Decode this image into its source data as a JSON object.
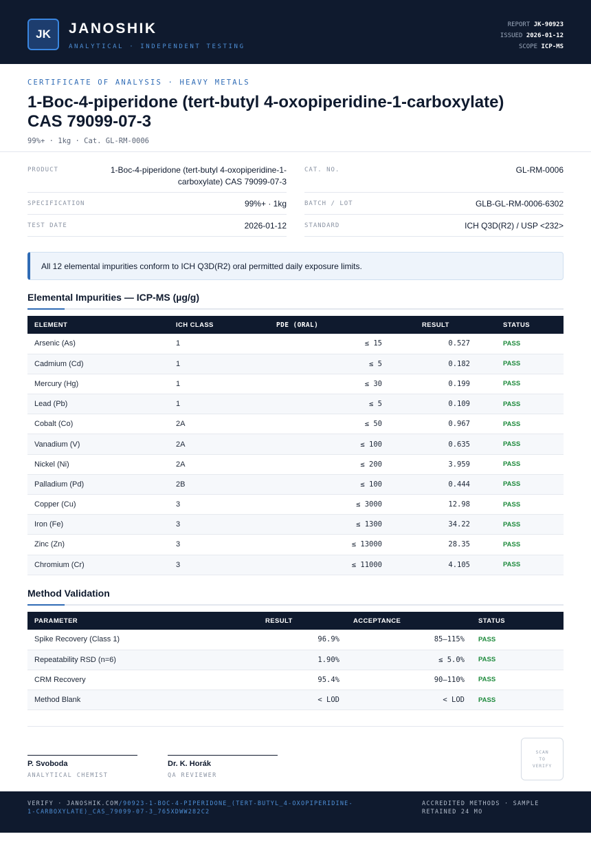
{
  "header": {
    "logo_text": "JK",
    "brand_name": "JANOSHIK",
    "brand_tagline": "ANALYTICAL · INDEPENDENT TESTING",
    "report_label": "REPORT",
    "report_value": "JK-90923",
    "issued_label": "ISSUED",
    "issued_value": "2026-01-12",
    "scope_label": "SCOPE",
    "scope_value": "ICP-MS"
  },
  "doc": {
    "kicker": "CERTIFICATE OF ANALYSIS · HEAVY METALS",
    "title_line1": "1-Boc-4-piperidone (tert-butyl 4-oxopiperidine-1-carboxylate)",
    "title_line2": "CAS 79099-07-3",
    "subline": "99%+ · 1kg  ·  Cat. GL-RM-0006"
  },
  "info": {
    "product_label": "PRODUCT",
    "product_value_line1": "1-Boc-4-piperidone (tert-butyl 4-oxopiperidine-1-",
    "product_value_line2": "carboxylate) CAS 79099-07-3",
    "spec_label": "SPECIFICATION",
    "spec_value": "99%+ · 1kg",
    "test_date_label": "TEST DATE",
    "test_date_value": "2026-01-12",
    "cat_label": "CAT. NO.",
    "cat_value": "GL-RM-0006",
    "batch_label": "BATCH / LOT",
    "batch_value": "GLB-GL-RM-0006-6302",
    "standard_label": "STANDARD",
    "standard_value": "ICH Q3D(R2) / USP <232>"
  },
  "callout": "All 12 elemental impurities conform to ICH Q3D(R2) oral permitted daily exposure limits.",
  "impurities": {
    "title": "Elemental Impurities — ICP-MS (µg/g)",
    "headers": [
      "ELEMENT",
      "ICH CLASS",
      "PDE (ORAL)",
      "RESULT",
      "STATUS"
    ],
    "rows": [
      [
        "Arsenic (As)",
        "1",
        "≤ 15",
        "0.527",
        "PASS"
      ],
      [
        "Cadmium (Cd)",
        "1",
        "≤ 5",
        "0.182",
        "PASS"
      ],
      [
        "Mercury (Hg)",
        "1",
        "≤ 30",
        "0.199",
        "PASS"
      ],
      [
        "Lead (Pb)",
        "1",
        "≤ 5",
        "0.109",
        "PASS"
      ],
      [
        "Cobalt (Co)",
        "2A",
        "≤ 50",
        "0.967",
        "PASS"
      ],
      [
        "Vanadium (V)",
        "2A",
        "≤ 100",
        "0.635",
        "PASS"
      ],
      [
        "Nickel (Ni)",
        "2A",
        "≤ 200",
        "3.959",
        "PASS"
      ],
      [
        "Palladium (Pd)",
        "2B",
        "≤ 100",
        "0.444",
        "PASS"
      ],
      [
        "Copper (Cu)",
        "3",
        "≤ 3000",
        "12.98",
        "PASS"
      ],
      [
        "Iron (Fe)",
        "3",
        "≤ 1300",
        "34.22",
        "PASS"
      ],
      [
        "Zinc (Zn)",
        "3",
        "≤ 13000",
        "28.35",
        "PASS"
      ],
      [
        "Chromium (Cr)",
        "3",
        "≤ 11000",
        "4.105",
        "PASS"
      ]
    ]
  },
  "validation": {
    "title": "Method Validation",
    "headers": [
      "PARAMETER",
      "RESULT",
      "ACCEPTANCE",
      "STATUS"
    ],
    "rows": [
      [
        "Spike Recovery (Class 1)",
        "96.9%",
        "85–115%",
        "PASS"
      ],
      [
        "Repeatability RSD (n=6)",
        "1.90%",
        "≤ 5.0%",
        "PASS"
      ],
      [
        "CRM Recovery",
        "95.4%",
        "90–110%",
        "PASS"
      ],
      [
        "Method Blank",
        "< LOD",
        "< LOD",
        "PASS"
      ]
    ]
  },
  "signatures": [
    {
      "name": "P. Svoboda",
      "role": "ANALYTICAL CHEMIST"
    },
    {
      "name": "Dr. K. Horák",
      "role": "QA REVIEWER"
    }
  ],
  "qr_text_line1": "SCAN",
  "qr_text_line2": "TO",
  "qr_text_line3": "VERIFY",
  "footer": {
    "verify_prefix": "VERIFY · JANOSHIK.COM",
    "verify_path": "/90923-1-BOC-4-PIPERIDONE_(TERT-BUTYL_4-OXOPIPERIDINE-1-CARBOXYLATE)_CAS_79099-07-3_765XDWW282C2",
    "right_text": "ACCREDITED METHODS · SAMPLE RETAINED 24 MO"
  },
  "colors": {
    "navy": "#0f1a2e",
    "accent": "#2f6bb5",
    "pass": "#1e8a3c"
  }
}
